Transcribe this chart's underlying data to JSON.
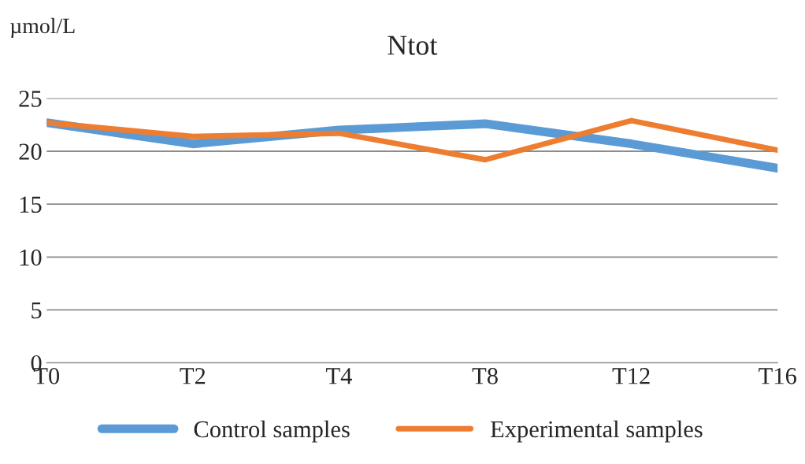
{
  "chart_data": {
    "type": "line",
    "title": "Ntot",
    "ylabel": "µmol/L",
    "categories": [
      "T0",
      "T2",
      "T4",
      "T8",
      "T12",
      "T16"
    ],
    "series": [
      {
        "name": "Control samples",
        "color": "#5b9bd5",
        "values": [
          22.7,
          20.7,
          22.0,
          22.6,
          20.7,
          18.4
        ]
      },
      {
        "name": "Experimental samples",
        "color": "#ed7d31",
        "values": [
          22.7,
          21.4,
          21.7,
          19.2,
          22.9,
          20.1
        ]
      }
    ],
    "ylim": [
      0,
      25
    ],
    "yticks": [
      0,
      5,
      10,
      15,
      20,
      25
    ],
    "grid": "y",
    "legend": "bottom",
    "marker": "none",
    "line_style": "solid"
  }
}
